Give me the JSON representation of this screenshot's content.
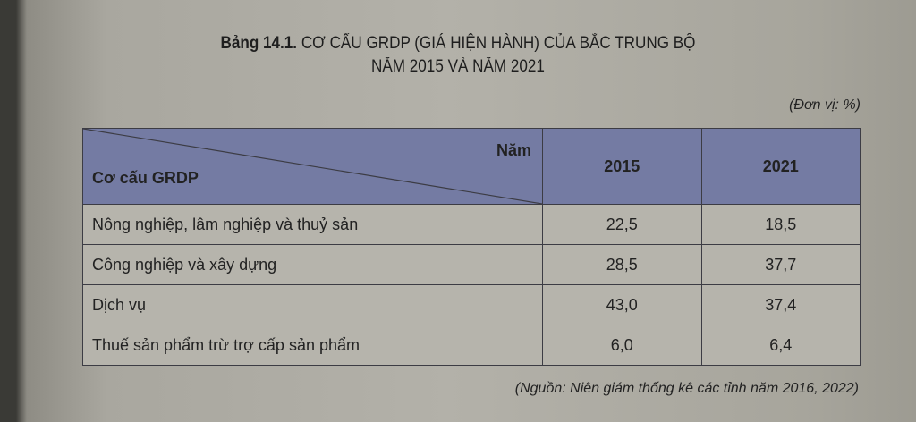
{
  "title": {
    "label": "Bảng 14.1.",
    "line1": "CƠ CẤU GRDP (GIÁ HIỆN HÀNH) CỦA BẮC TRUNG BỘ",
    "line2": "NĂM 2015 VÀ NĂM 2021"
  },
  "unit": "(Đơn vị: %)",
  "table": {
    "corner_top": "Năm",
    "corner_bottom": "Cơ cấu GRDP",
    "columns": [
      "2015",
      "2021"
    ],
    "rows": [
      {
        "label": "Nông nghiệp, lâm nghiệp và thuỷ sản",
        "values": [
          "22,5",
          "18,5"
        ]
      },
      {
        "label": "Công nghiệp và xây dựng",
        "values": [
          "28,5",
          "37,7"
        ]
      },
      {
        "label": "Dịch vụ",
        "values": [
          "43,0",
          "37,4"
        ]
      },
      {
        "label": "Thuế sản phẩm trừ trợ cấp sản phẩm",
        "values": [
          "6,0",
          "6,4"
        ]
      }
    ]
  },
  "source": "(Nguồn: Niên giám thống kê các tỉnh năm 2016, 2022)",
  "colors": {
    "header": "#747ba3",
    "paper": "#b3b1a9"
  }
}
